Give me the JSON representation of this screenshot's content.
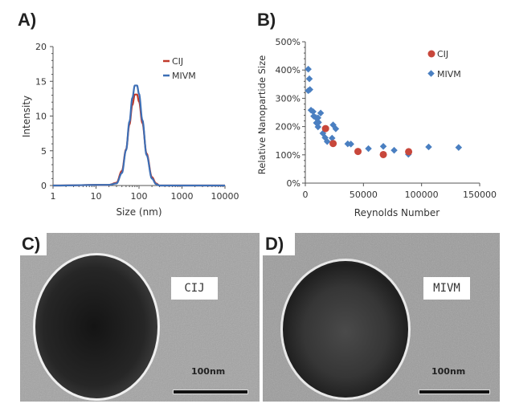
{
  "panels": {
    "a": "A)",
    "b": "B)",
    "c": "C)",
    "d": "D)"
  },
  "chart_data": [
    {
      "type": "line",
      "xlabel": "Size (nm)",
      "ylabel": "Intensity",
      "x_scale": "log",
      "xlim": [
        1,
        10000
      ],
      "ylim": [
        0,
        20
      ],
      "x_ticks": [
        "1",
        "10",
        "100",
        "1000",
        "10000"
      ],
      "y_ticks": [
        "0",
        "5",
        "10",
        "15",
        "20"
      ],
      "legend_position": "top-right",
      "grid": false,
      "series": [
        {
          "name": "CIJ",
          "color": "#c0392b",
          "x": [
            1,
            20,
            30,
            40,
            50,
            60,
            70,
            80,
            90,
            100,
            120,
            150,
            200,
            250,
            300,
            10000
          ],
          "y": [
            0,
            0.1,
            0.4,
            2.1,
            5.2,
            8.8,
            11.6,
            13.1,
            13.1,
            12.1,
            9.0,
            4.6,
            1.2,
            0.3,
            0,
            0
          ]
        },
        {
          "name": "MIVM",
          "color": "#3d6fb6",
          "x": [
            1,
            20,
            30,
            40,
            50,
            60,
            70,
            80,
            90,
            100,
            120,
            150,
            200,
            250,
            300,
            10000
          ],
          "y": [
            0,
            0.1,
            0.3,
            1.8,
            5.1,
            9.2,
            12.6,
            14.4,
            14.4,
            13.2,
            9.4,
            4.4,
            1.0,
            0.2,
            0,
            0
          ]
        }
      ]
    },
    {
      "type": "scatter",
      "xlabel": "Reynolds Number",
      "ylabel": "Relative Nanopartide Size",
      "xlim": [
        0,
        150000
      ],
      "ylim": [
        0,
        500
      ],
      "x_ticks": [
        "0",
        "50000",
        "100000",
        "150000"
      ],
      "y_ticks": [
        "0%",
        "100%",
        "200%",
        "300%",
        "400%",
        "500%"
      ],
      "legend_position": "top-right",
      "grid": false,
      "series": [
        {
          "name": "CIJ",
          "color": "#c8473b",
          "marker": "circle",
          "x": [
            17400,
            23900,
            45300,
            67100,
            88900
          ],
          "y": [
            193,
            140,
            112,
            101,
            111
          ]
        },
        {
          "name": "MIVM",
          "color": "#4a7fc1",
          "marker": "diamond",
          "x": [
            2550,
            3480,
            3950,
            2550,
            4880,
            6730,
            7200,
            9060,
            10900,
            13200,
            9500,
            11400,
            10900,
            15100,
            17000,
            18800,
            23000,
            23900,
            26200,
            36500,
            39200,
            54300,
            67100,
            76400,
            88700,
            88900,
            106100,
            131900
          ],
          "y": [
            403,
            369,
            331,
            327,
            258,
            253,
            237,
            232,
            231,
            248,
            213,
            215,
            199,
            176,
            161,
            147,
            159,
            206,
            192,
            139,
            138,
            122,
            130,
            116,
            102,
            109,
            128,
            126
          ]
        }
      ]
    }
  ],
  "tem": {
    "c": {
      "tag": "CIJ",
      "scale": "100nm"
    },
    "d": {
      "tag": "MIVM",
      "scale": "100nm"
    }
  }
}
